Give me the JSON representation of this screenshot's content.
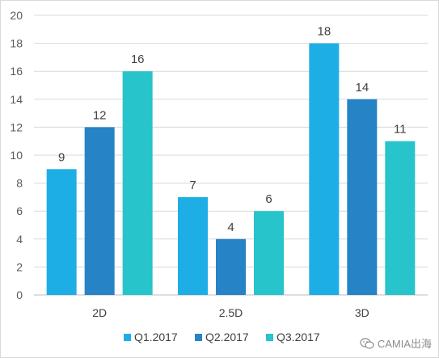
{
  "chart_data": {
    "type": "bar",
    "categories": [
      "2D",
      "2.5D",
      "3D"
    ],
    "series": [
      {
        "name": "Q1.2017",
        "values": [
          9,
          7,
          18
        ],
        "color": "#1EAEE6"
      },
      {
        "name": "Q2.2017",
        "values": [
          12,
          4,
          14
        ],
        "color": "#2683C6"
      },
      {
        "name": "Q3.2017",
        "values": [
          16,
          6,
          11
        ],
        "color": "#27C4CB"
      }
    ],
    "ylim": [
      0,
      20
    ],
    "yticks": [
      0,
      2,
      4,
      6,
      8,
      10,
      12,
      14,
      16,
      18,
      20
    ],
    "grid": true,
    "legend_position": "bottom",
    "data_labels": true
  },
  "watermark": {
    "text": "CAMIA出海",
    "icon": "wechat-icon"
  }
}
